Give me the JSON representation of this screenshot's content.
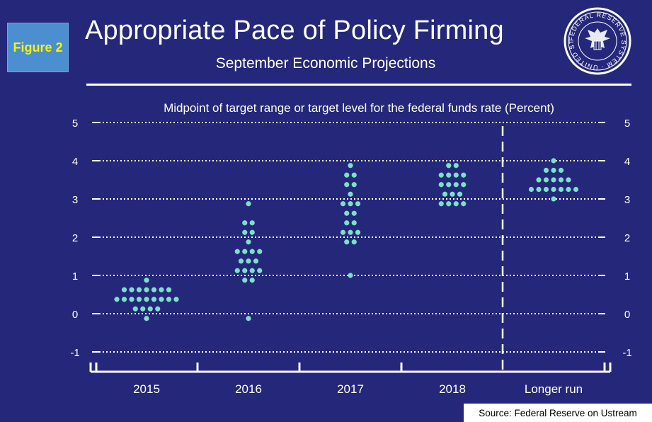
{
  "figure_label": "Figure 2",
  "source": "Source: Federal Reserve on Ustream",
  "colors": {
    "background": "#25287a",
    "dot": "#7fe0c8",
    "grid": "#ffffff"
  },
  "seal": {
    "icon": "federal-reserve-seal-icon",
    "text": "FEDERAL RESERVE SYSTEM · UNITED STATES"
  },
  "chart_data": {
    "type": "scatter",
    "title": "Appropriate Pace of Policy Firming",
    "subtitle": "September Economic Projections",
    "ylabel": "Midpoint of target range or target level for the federal funds rate (Percent)",
    "ylim": [
      -1,
      5
    ],
    "yticks": [
      5,
      4,
      3,
      2,
      1,
      0,
      -1
    ],
    "ytick_labels": [
      "5",
      "4",
      "3",
      "2",
      "1",
      "0",
      "-1"
    ],
    "categories": [
      "2015",
      "2016",
      "2017",
      "2018",
      "Longer run"
    ],
    "grid": true,
    "separator_before": "Longer run",
    "dots": [
      {
        "category": "2015",
        "counts": [
          [
            0.875,
            1
          ],
          [
            0.625,
            7
          ],
          [
            0.375,
            9
          ],
          [
            0.125,
            4
          ],
          [
            -0.125,
            1
          ]
        ]
      },
      {
        "category": "2016",
        "counts": [
          [
            2.875,
            1
          ],
          [
            2.375,
            2
          ],
          [
            2.125,
            2
          ],
          [
            1.875,
            1
          ],
          [
            1.625,
            4
          ],
          [
            1.375,
            3
          ],
          [
            1.125,
            4
          ],
          [
            0.875,
            2
          ],
          [
            -0.125,
            1
          ]
        ]
      },
      {
        "category": "2017",
        "counts": [
          [
            3.875,
            1
          ],
          [
            3.625,
            2
          ],
          [
            3.375,
            2
          ],
          [
            3.125,
            1
          ],
          [
            2.875,
            3
          ],
          [
            2.625,
            2
          ],
          [
            2.375,
            2
          ],
          [
            2.125,
            3
          ],
          [
            1.875,
            2
          ],
          [
            1.0,
            1
          ]
        ]
      },
      {
        "category": "2018",
        "counts": [
          [
            3.875,
            2
          ],
          [
            3.625,
            4
          ],
          [
            3.375,
            4
          ],
          [
            3.125,
            3
          ],
          [
            2.875,
            4
          ]
        ]
      },
      {
        "category": "Longer run",
        "counts": [
          [
            4.0,
            1
          ],
          [
            3.75,
            3
          ],
          [
            3.5,
            5
          ],
          [
            3.25,
            7
          ],
          [
            3.0,
            1
          ]
        ]
      }
    ]
  }
}
